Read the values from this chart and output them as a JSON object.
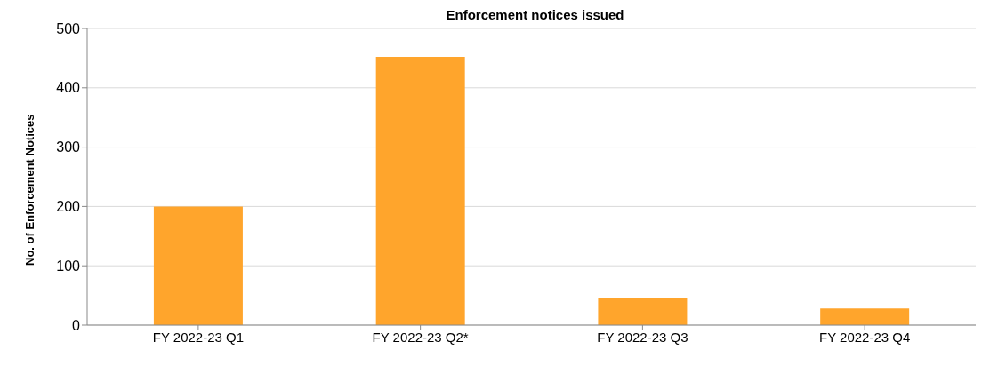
{
  "chart_data": {
    "type": "bar",
    "title": "Enforcement notices issued",
    "ylabel": "No. of Enforcement Notices",
    "categories": [
      "FY 2022-23 Q1",
      "FY 2022-23 Q2*",
      "FY 2022-23 Q3",
      "FY 2022-23 Q4"
    ],
    "values": [
      200,
      452,
      45,
      28
    ],
    "color": "#ffa52c",
    "ylim": [
      0,
      500
    ],
    "yticks": [
      0,
      100,
      200,
      300,
      400,
      500
    ],
    "grid": "y"
  }
}
